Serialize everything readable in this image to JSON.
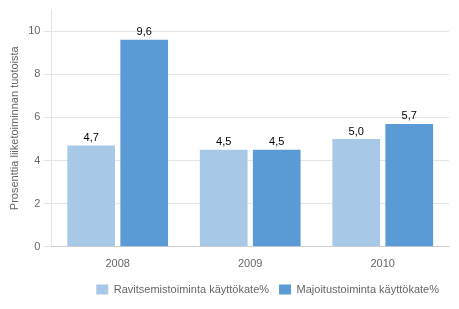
{
  "chart_data": {
    "type": "bar",
    "categories": [
      "2008",
      "2009",
      "2010"
    ],
    "series": [
      {
        "name": "Ravitsemistoiminta käyttökate%",
        "color": "#A8C8E8",
        "values": [
          4.7,
          4.5,
          5.0
        ],
        "value_labels": [
          "4,7",
          "4,5",
          "5,0"
        ]
      },
      {
        "name": "Majoitustoiminta käyttökate%",
        "color": "#5B9BD5",
        "values": [
          9.6,
          4.5,
          5.7
        ],
        "value_labels": [
          "9,6",
          "4,5",
          "5,7"
        ]
      }
    ],
    "y_label": "Prosenttia liiketoiminnan tuotoista",
    "ylim": [
      0,
      11
    ],
    "yticks": [
      0,
      2,
      4,
      6,
      8,
      10
    ],
    "grid": true,
    "legend": "lower right",
    "data_labels": true
  }
}
